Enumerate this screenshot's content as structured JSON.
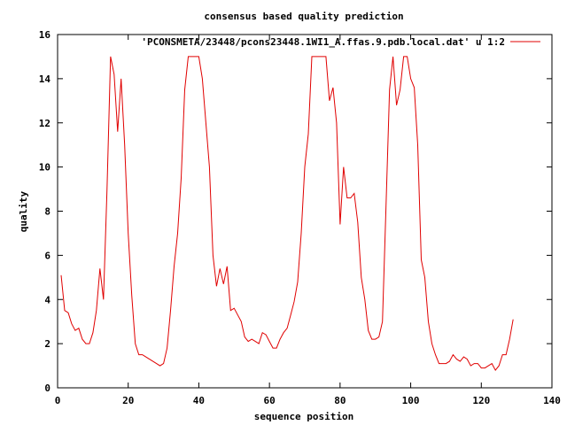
{
  "chart_data": {
    "type": "line",
    "title": "consensus based quality prediction",
    "xlabel": "sequence position",
    "ylabel": "quality",
    "xlim": [
      0,
      140
    ],
    "ylim": [
      0,
      16
    ],
    "xticks": [
      "0",
      "20",
      "40",
      "60",
      "80",
      "100",
      "120",
      "140"
    ],
    "yticks": [
      "0",
      "2",
      "4",
      "6",
      "8",
      "10",
      "12",
      "14",
      "16"
    ],
    "grid": false,
    "legend": "top-right",
    "series": [
      {
        "name": "'PCONSMETA/23448/pcons23448.1WI1_A.ffas.9.pdb.local.dat' u 1:2",
        "color": "#e00000",
        "x": [
          1,
          2,
          3,
          4,
          5,
          6,
          7,
          8,
          9,
          10,
          11,
          12,
          13,
          14,
          15,
          16,
          17,
          18,
          19,
          20,
          21,
          22,
          23,
          24,
          25,
          26,
          27,
          28,
          29,
          30,
          31,
          32,
          33,
          34,
          35,
          36,
          37,
          38,
          39,
          40,
          41,
          42,
          43,
          44,
          45,
          46,
          47,
          48,
          49,
          50,
          51,
          52,
          53,
          54,
          55,
          56,
          57,
          58,
          59,
          60,
          61,
          62,
          63,
          64,
          65,
          66,
          67,
          68,
          69,
          70,
          71,
          72,
          73,
          74,
          75,
          76,
          77,
          78,
          79,
          80,
          81,
          82,
          83,
          84,
          85,
          86,
          87,
          88,
          89,
          90,
          91,
          92,
          93,
          94,
          95,
          96,
          97,
          98,
          99,
          100,
          101,
          102,
          103,
          104,
          105,
          106,
          107,
          108,
          109,
          110,
          111,
          112,
          113,
          114,
          115,
          116,
          117,
          118,
          119,
          120,
          121,
          122,
          123,
          124,
          125,
          126,
          127,
          128,
          129
        ],
        "y": [
          5.1,
          3.5,
          3.4,
          2.9,
          2.6,
          2.7,
          2.2,
          2.0,
          2.0,
          2.5,
          3.5,
          5.4,
          4.0,
          9.0,
          15.0,
          14.2,
          11.6,
          14.0,
          11.0,
          7.0,
          4.2,
          2.0,
          1.5,
          1.5,
          1.4,
          1.3,
          1.2,
          1.1,
          1.0,
          1.1,
          1.8,
          3.5,
          5.5,
          7.0,
          9.5,
          13.5,
          15.0,
          15.0,
          15.0,
          15.0,
          14.0,
          12.0,
          10.0,
          6.0,
          4.6,
          5.4,
          4.7,
          5.5,
          3.5,
          3.6,
          3.3,
          3.0,
          2.3,
          2.1,
          2.2,
          2.1,
          2.0,
          2.5,
          2.4,
          2.1,
          1.8,
          1.8,
          2.2,
          2.5,
          2.7,
          3.3,
          3.9,
          4.8,
          7.0,
          10.0,
          11.5,
          15.0,
          15.0,
          15.0,
          15.0,
          15.0,
          13.0,
          13.6,
          12.0,
          7.4,
          10.0,
          8.6,
          8.6,
          8.8,
          7.5,
          5.0,
          4.0,
          2.6,
          2.2,
          2.2,
          2.3,
          3.0,
          8.2,
          13.5,
          15.0,
          12.8,
          13.5,
          15.0,
          15.0,
          14.0,
          13.6,
          11.0,
          5.8,
          5.0,
          3.0,
          2.0,
          1.5,
          1.1,
          1.1,
          1.1,
          1.2,
          1.5,
          1.3,
          1.2,
          1.4,
          1.3,
          1.0,
          1.1,
          1.1,
          0.9,
          0.9,
          1.0,
          1.1,
          0.8,
          1.0,
          1.5,
          1.5,
          2.2,
          3.1
        ]
      }
    ]
  }
}
